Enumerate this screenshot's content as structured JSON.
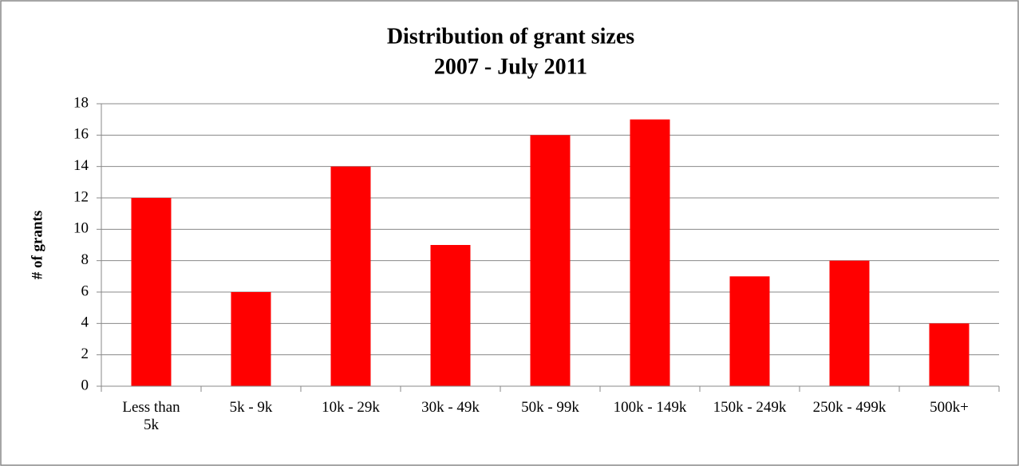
{
  "chart_data": {
    "type": "bar",
    "title": [
      "Distribution of grant sizes",
      "2007 - July 2011"
    ],
    "y_label": "# of grants",
    "categories": [
      "Less than 5k",
      "5k - 9k",
      "10k - 29k",
      "30k - 49k",
      "50k - 99k",
      "100k - 149k",
      "150k - 249k",
      "250k - 499k",
      "500k+"
    ],
    "values": [
      12,
      6,
      14,
      9,
      16,
      17,
      7,
      8,
      4
    ],
    "color": "#ff0000",
    "ylim": [
      0,
      18
    ],
    "yticks": [
      0,
      2,
      4,
      6,
      8,
      10,
      12,
      14,
      16,
      18
    ],
    "grid": true
  }
}
